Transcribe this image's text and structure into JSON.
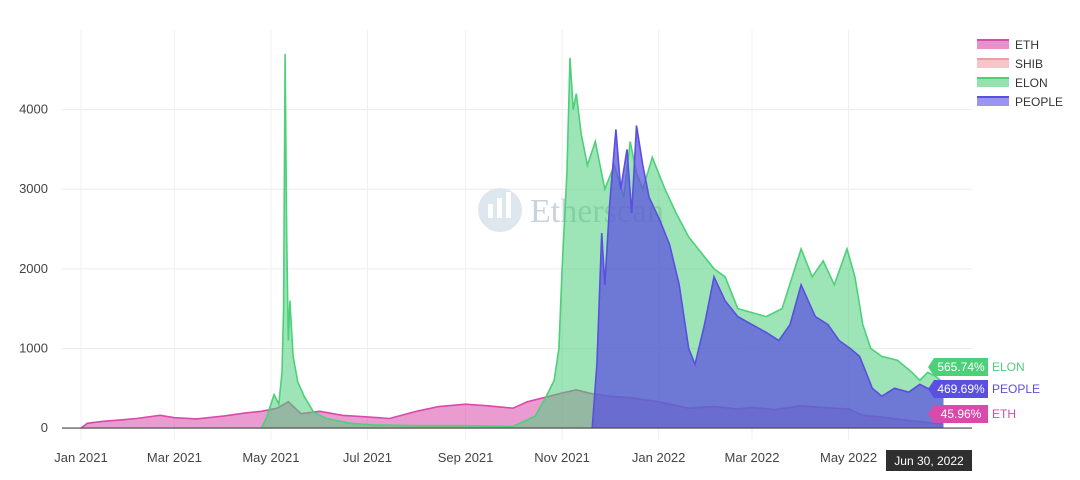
{
  "chart_data": {
    "type": "area",
    "title": "",
    "xlabel": "",
    "ylabel": "",
    "x_range": [
      "2020-12-20",
      "2022-07-18"
    ],
    "ylim": [
      -150,
      5000
    ],
    "y_ticks": [
      0,
      1000,
      2000,
      3000,
      4000
    ],
    "x_ticks": [
      {
        "date": "2021-01-01",
        "label": "Jan 2021"
      },
      {
        "date": "2021-03-01",
        "label": "Mar 2021"
      },
      {
        "date": "2021-05-01",
        "label": "May 2021"
      },
      {
        "date": "2021-07-01",
        "label": "Jul 2021"
      },
      {
        "date": "2021-09-01",
        "label": "Sep 2021"
      },
      {
        "date": "2021-11-01",
        "label": "Nov 2021"
      },
      {
        "date": "2022-01-01",
        "label": "Jan 2022"
      },
      {
        "date": "2022-03-01",
        "label": "Mar 2022"
      },
      {
        "date": "2022-05-01",
        "label": "May 2022"
      }
    ],
    "grid": true,
    "legend_position": "top-right",
    "hover_date_label": "Jun 30, 2022",
    "watermark": "Etherscan",
    "series": [
      {
        "name": "ETH",
        "color": "#d94aaa",
        "end_label": "45.96%",
        "points": [
          [
            "2021-01-01",
            0
          ],
          [
            "2021-01-05",
            60
          ],
          [
            "2021-01-15",
            85
          ],
          [
            "2021-01-25",
            100
          ],
          [
            "2021-02-05",
            120
          ],
          [
            "2021-02-20",
            160
          ],
          [
            "2021-03-01",
            130
          ],
          [
            "2021-03-15",
            115
          ],
          [
            "2021-04-01",
            150
          ],
          [
            "2021-04-15",
            190
          ],
          [
            "2021-04-25",
            210
          ],
          [
            "2021-05-05",
            250
          ],
          [
            "2021-05-12",
            330
          ],
          [
            "2021-05-20",
            180
          ],
          [
            "2021-06-01",
            210
          ],
          [
            "2021-06-15",
            160
          ],
          [
            "2021-07-01",
            140
          ],
          [
            "2021-07-15",
            120
          ],
          [
            "2021-08-01",
            210
          ],
          [
            "2021-08-15",
            270
          ],
          [
            "2021-09-01",
            300
          ],
          [
            "2021-09-15",
            280
          ],
          [
            "2021-10-01",
            250
          ],
          [
            "2021-10-10",
            330
          ],
          [
            "2021-10-20",
            380
          ],
          [
            "2021-11-01",
            440
          ],
          [
            "2021-11-10",
            480
          ],
          [
            "2021-11-20",
            430
          ],
          [
            "2021-12-01",
            400
          ],
          [
            "2021-12-15",
            380
          ],
          [
            "2022-01-01",
            330
          ],
          [
            "2022-01-20",
            250
          ],
          [
            "2022-02-05",
            270
          ],
          [
            "2022-02-20",
            240
          ],
          [
            "2022-03-01",
            260
          ],
          [
            "2022-03-15",
            230
          ],
          [
            "2022-04-01",
            280
          ],
          [
            "2022-04-15",
            260
          ],
          [
            "2022-05-01",
            240
          ],
          [
            "2022-05-10",
            160
          ],
          [
            "2022-05-25",
            130
          ],
          [
            "2022-06-10",
            90
          ],
          [
            "2022-06-20",
            70
          ],
          [
            "2022-06-30",
            46
          ]
        ]
      },
      {
        "name": "SHIB",
        "color": "#f29ca3",
        "points": []
      },
      {
        "name": "ELON",
        "color": "#4cd07a",
        "end_label": "565.74%",
        "points": [
          [
            "2021-04-25",
            0
          ],
          [
            "2021-04-28",
            120
          ],
          [
            "2021-05-03",
            420
          ],
          [
            "2021-05-06",
            300
          ],
          [
            "2021-05-08",
            700
          ],
          [
            "2021-05-09",
            1500
          ],
          [
            "2021-05-10",
            4700
          ],
          [
            "2021-05-11",
            2400
          ],
          [
            "2021-05-12",
            1100
          ],
          [
            "2021-05-13",
            1600
          ],
          [
            "2021-05-15",
            900
          ],
          [
            "2021-05-18",
            580
          ],
          [
            "2021-05-22",
            400
          ],
          [
            "2021-05-28",
            200
          ],
          [
            "2021-06-05",
            120
          ],
          [
            "2021-06-20",
            60
          ],
          [
            "2021-07-05",
            40
          ],
          [
            "2021-08-01",
            30
          ],
          [
            "2021-09-01",
            30
          ],
          [
            "2021-10-01",
            20
          ],
          [
            "2021-10-15",
            150
          ],
          [
            "2021-10-22",
            400
          ],
          [
            "2021-10-27",
            600
          ],
          [
            "2021-10-30",
            1000
          ],
          [
            "2021-11-01",
            2000
          ],
          [
            "2021-11-04",
            3200
          ],
          [
            "2021-11-06",
            4650
          ],
          [
            "2021-11-08",
            4000
          ],
          [
            "2021-11-10",
            4200
          ],
          [
            "2021-11-13",
            3700
          ],
          [
            "2021-11-17",
            3300
          ],
          [
            "2021-11-22",
            3600
          ],
          [
            "2021-11-28",
            3000
          ],
          [
            "2021-12-04",
            3300
          ],
          [
            "2021-12-10",
            2900
          ],
          [
            "2021-12-14",
            3600
          ],
          [
            "2021-12-18",
            3200
          ],
          [
            "2021-12-22",
            3000
          ],
          [
            "2021-12-28",
            3400
          ],
          [
            "2022-01-05",
            3000
          ],
          [
            "2022-01-12",
            2700
          ],
          [
            "2022-01-20",
            2400
          ],
          [
            "2022-01-28",
            2200
          ],
          [
            "2022-02-05",
            2000
          ],
          [
            "2022-02-12",
            1900
          ],
          [
            "2022-02-20",
            1500
          ],
          [
            "2022-03-01",
            1450
          ],
          [
            "2022-03-10",
            1400
          ],
          [
            "2022-03-20",
            1500
          ],
          [
            "2022-04-01",
            2250
          ],
          [
            "2022-04-08",
            1900
          ],
          [
            "2022-04-15",
            2100
          ],
          [
            "2022-04-22",
            1800
          ],
          [
            "2022-04-30",
            2250
          ],
          [
            "2022-05-05",
            1900
          ],
          [
            "2022-05-10",
            1300
          ],
          [
            "2022-05-15",
            1000
          ],
          [
            "2022-05-22",
            900
          ],
          [
            "2022-06-01",
            850
          ],
          [
            "2022-06-10",
            700
          ],
          [
            "2022-06-15",
            600
          ],
          [
            "2022-06-20",
            700
          ],
          [
            "2022-06-25",
            650
          ],
          [
            "2022-06-30",
            566
          ]
        ]
      },
      {
        "name": "PEOPLE",
        "color": "#5a4fe0",
        "end_label": "469.69%",
        "points": [
          [
            "2021-11-20",
            0
          ],
          [
            "2021-11-23",
            800
          ],
          [
            "2021-11-26",
            2450
          ],
          [
            "2021-11-28",
            1800
          ],
          [
            "2021-12-01",
            2800
          ],
          [
            "2021-12-05",
            3750
          ],
          [
            "2021-12-08",
            3000
          ],
          [
            "2021-12-12",
            3500
          ],
          [
            "2021-12-15",
            2700
          ],
          [
            "2021-12-18",
            3800
          ],
          [
            "2021-12-22",
            3300
          ],
          [
            "2021-12-26",
            2900
          ],
          [
            "2022-01-02",
            2600
          ],
          [
            "2022-01-08",
            2300
          ],
          [
            "2022-01-14",
            1800
          ],
          [
            "2022-01-20",
            1000
          ],
          [
            "2022-01-24",
            800
          ],
          [
            "2022-01-30",
            1300
          ],
          [
            "2022-02-05",
            1900
          ],
          [
            "2022-02-12",
            1600
          ],
          [
            "2022-02-20",
            1400
          ],
          [
            "2022-03-01",
            1300
          ],
          [
            "2022-03-10",
            1200
          ],
          [
            "2022-03-18",
            1100
          ],
          [
            "2022-03-25",
            1300
          ],
          [
            "2022-04-01",
            1800
          ],
          [
            "2022-04-10",
            1400
          ],
          [
            "2022-04-18",
            1300
          ],
          [
            "2022-04-25",
            1100
          ],
          [
            "2022-05-02",
            1000
          ],
          [
            "2022-05-08",
            900
          ],
          [
            "2022-05-12",
            700
          ],
          [
            "2022-05-16",
            500
          ],
          [
            "2022-05-22",
            400
          ],
          [
            "2022-05-30",
            500
          ],
          [
            "2022-06-08",
            450
          ],
          [
            "2022-06-15",
            550
          ],
          [
            "2022-06-20",
            500
          ],
          [
            "2022-06-25",
            480
          ],
          [
            "2022-06-30",
            470
          ]
        ]
      }
    ]
  }
}
